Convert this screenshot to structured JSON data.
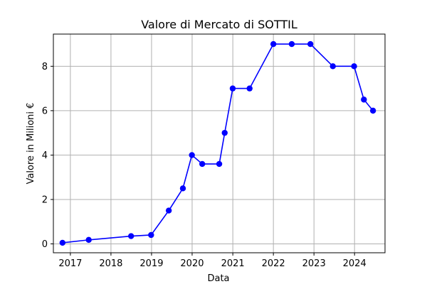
{
  "chart_data": {
    "type": "line",
    "title": "Valore di Mercato di SOTTIL",
    "xlabel": "Data",
    "ylabel": "Valore in Milioni €",
    "x_is_date": true,
    "xlim": [
      "2016-08-01",
      "2024-10-01"
    ],
    "ylim": [
      -0.4,
      9.45
    ],
    "xticks": [
      {
        "date": "2017-01-01",
        "label": "2017"
      },
      {
        "date": "2018-01-01",
        "label": "2018"
      },
      {
        "date": "2019-01-01",
        "label": "2019"
      },
      {
        "date": "2020-01-01",
        "label": "2020"
      },
      {
        "date": "2021-01-01",
        "label": "2021"
      },
      {
        "date": "2022-01-01",
        "label": "2022"
      },
      {
        "date": "2023-01-01",
        "label": "2023"
      },
      {
        "date": "2024-01-01",
        "label": "2024"
      }
    ],
    "yticks": [
      0,
      2,
      4,
      6,
      8
    ],
    "grid": true,
    "color": "#0000ff",
    "series": [
      {
        "x": [
          "2016-10-22",
          "2017-06-15",
          "2018-07-01",
          "2018-12-28",
          "2019-06-05",
          "2019-10-10",
          "2019-12-30",
          "2020-04-01",
          "2020-09-01",
          "2020-10-20",
          "2020-12-31",
          "2021-06-01",
          "2022-01-01",
          "2022-06-15",
          "2022-11-30",
          "2023-06-20",
          "2023-12-28",
          "2024-03-25",
          "2024-06-15"
        ],
        "y": [
          0.05,
          0.18,
          0.35,
          0.4,
          1.5,
          2.5,
          4.0,
          3.6,
          3.6,
          5.0,
          7.0,
          7.0,
          9.0,
          9.0,
          9.0,
          8.0,
          8.0,
          6.5,
          6.0
        ]
      }
    ]
  }
}
